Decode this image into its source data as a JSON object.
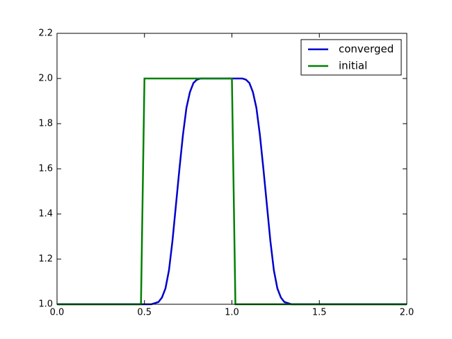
{
  "chart_data": {
    "type": "line",
    "xlim": [
      0,
      2
    ],
    "ylim": [
      1,
      2.2
    ],
    "xticks": [
      {
        "value": 0,
        "label": "0.0"
      },
      {
        "value": 0.5,
        "label": "0.5"
      },
      {
        "value": 1,
        "label": "1.0"
      },
      {
        "value": 1.5,
        "label": "1.5"
      },
      {
        "value": 2,
        "label": "2.0"
      }
    ],
    "yticks": [
      {
        "value": 1,
        "label": "1.0"
      },
      {
        "value": 1.2,
        "label": "1.2"
      },
      {
        "value": 1.4,
        "label": "1.4"
      },
      {
        "value": 1.6,
        "label": "1.6"
      },
      {
        "value": 1.8,
        "label": "1.8"
      },
      {
        "value": 2,
        "label": "2.0"
      },
      {
        "value": 2.2,
        "label": "2.2"
      }
    ],
    "legend": "upper right",
    "series": [
      {
        "name": "converged",
        "color": "#0000cc",
        "x": [
          0,
          0.54,
          0.58,
          0.6,
          0.62,
          0.64,
          0.66,
          0.68,
          0.7,
          0.72,
          0.74,
          0.76,
          0.78,
          0.8,
          0.82,
          1.06,
          1.08,
          1.1,
          1.12,
          1.14,
          1.16,
          1.18,
          1.2,
          1.22,
          1.24,
          1.26,
          1.28,
          1.3,
          1.34,
          2
        ],
        "values": [
          1,
          1,
          1.01,
          1.03,
          1.07,
          1.15,
          1.28,
          1.44,
          1.6,
          1.75,
          1.87,
          1.94,
          1.98,
          1.995,
          2,
          2,
          1.995,
          1.98,
          1.94,
          1.87,
          1.75,
          1.6,
          1.44,
          1.28,
          1.15,
          1.07,
          1.03,
          1.01,
          1,
          1
        ]
      },
      {
        "name": "initial",
        "color": "#008000",
        "x": [
          0,
          0.48,
          0.5,
          1,
          1.02,
          2
        ],
        "values": [
          1,
          1,
          2,
          2,
          1,
          1
        ]
      }
    ]
  }
}
